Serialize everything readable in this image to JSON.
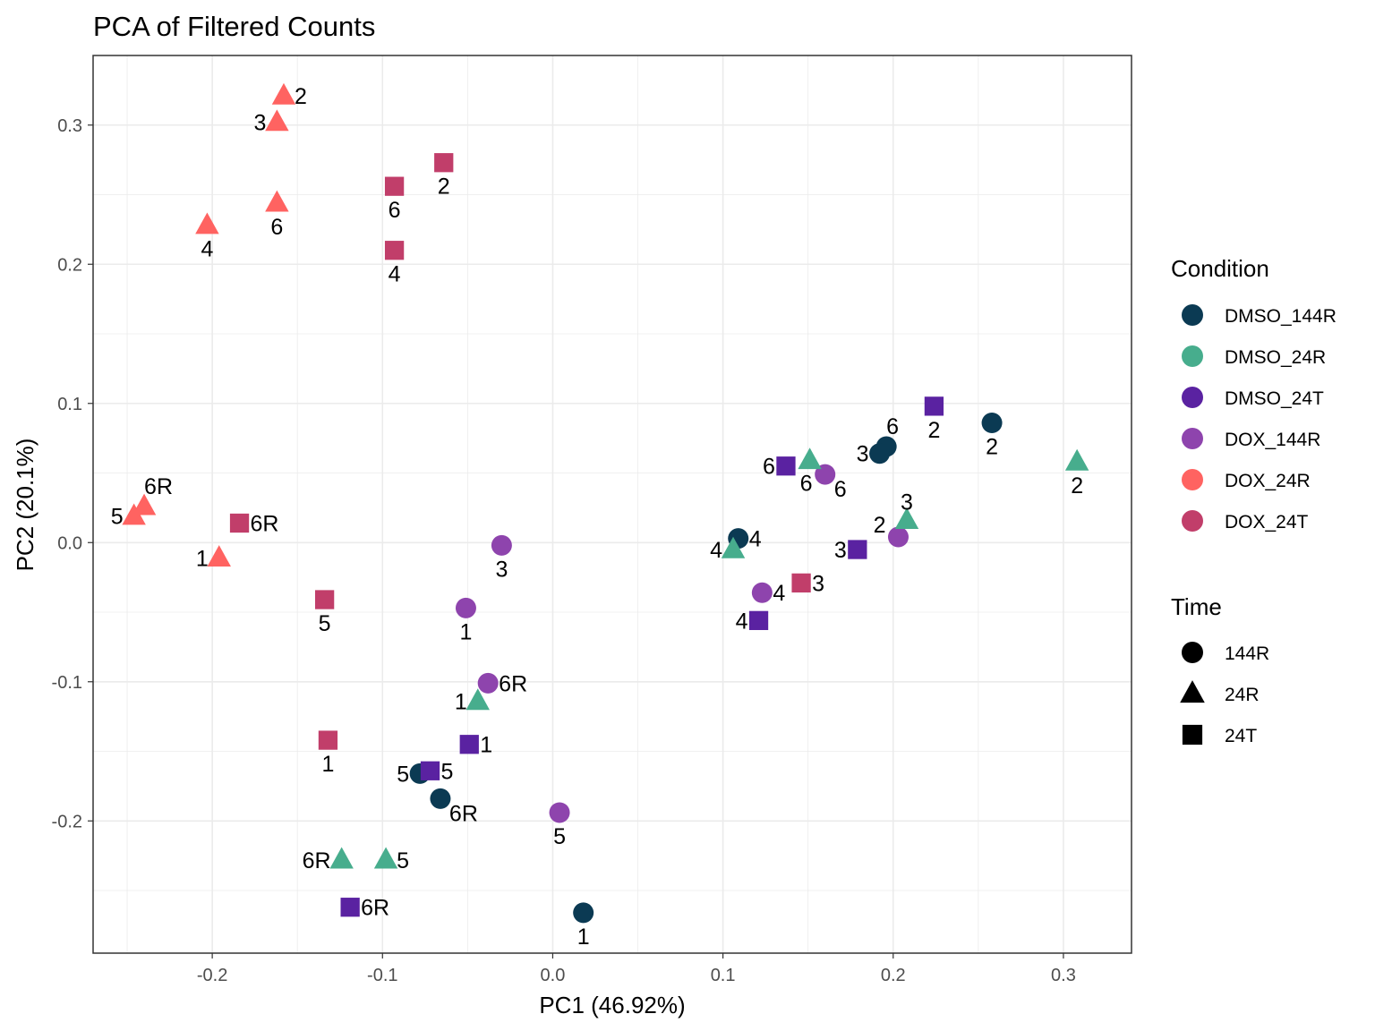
{
  "chart_data": {
    "type": "scatter",
    "title": "PCA of Filtered Counts",
    "xlabel": "PC1 (46.92%)",
    "ylabel": "PC2 (20.1%)",
    "xlim": [
      -0.27,
      0.34
    ],
    "ylim": [
      -0.295,
      0.35
    ],
    "xticks": [
      -0.2,
      -0.1,
      0.0,
      0.1,
      0.2,
      0.3
    ],
    "xtick_labels": [
      "-0.2",
      "-0.1",
      "0.0",
      "0.1",
      "0.2",
      "0.3"
    ],
    "yticks": [
      -0.2,
      -0.1,
      0.0,
      0.1,
      0.2,
      0.3
    ],
    "ytick_labels": [
      "-0.2",
      "-0.1",
      "0.0",
      "0.1",
      "0.2",
      "0.3"
    ],
    "grid": true,
    "legend_position": "right",
    "colors": {
      "DMSO_144R": "#0b3a53",
      "DMSO_24R": "#47ad8d",
      "DMSO_24T": "#5a22a1",
      "DOX_144R": "#8e44ad",
      "DOX_24R": "#ff6361",
      "DOX_24T": "#c13e6a"
    },
    "legend_condition": {
      "title": "Condition",
      "entries": [
        "DMSO_144R",
        "DMSO_24R",
        "DMSO_24T",
        "DOX_144R",
        "DOX_24R",
        "DOX_24T"
      ]
    },
    "legend_time": {
      "title": "Time",
      "entries": [
        {
          "label": "144R",
          "shape": "circle"
        },
        {
          "label": "24R",
          "shape": "triangle"
        },
        {
          "label": "24T",
          "shape": "square"
        }
      ]
    },
    "points": [
      {
        "x": -0.158,
        "y": 0.321,
        "condition": "DOX_24R",
        "time": "24R",
        "label": "2",
        "pos": "right"
      },
      {
        "x": -0.162,
        "y": 0.302,
        "condition": "DOX_24R",
        "time": "24R",
        "label": "3",
        "pos": "left"
      },
      {
        "x": -0.162,
        "y": 0.244,
        "condition": "DOX_24R",
        "time": "24R",
        "label": "6",
        "pos": "below"
      },
      {
        "x": -0.203,
        "y": 0.228,
        "condition": "DOX_24R",
        "time": "24R",
        "label": "4",
        "pos": "below"
      },
      {
        "x": -0.24,
        "y": 0.026,
        "condition": "DOX_24R",
        "time": "24R",
        "label": "6R",
        "pos": "above-right"
      },
      {
        "x": -0.246,
        "y": 0.019,
        "condition": "DOX_24R",
        "time": "24R",
        "label": "5",
        "pos": "left"
      },
      {
        "x": -0.196,
        "y": -0.011,
        "condition": "DOX_24R",
        "time": "24R",
        "label": "1",
        "pos": "left"
      },
      {
        "x": -0.064,
        "y": 0.273,
        "condition": "DOX_24T",
        "time": "24T",
        "label": "2",
        "pos": "below"
      },
      {
        "x": -0.093,
        "y": 0.256,
        "condition": "DOX_24T",
        "time": "24T",
        "label": "6",
        "pos": "below"
      },
      {
        "x": -0.093,
        "y": 0.21,
        "condition": "DOX_24T",
        "time": "24T",
        "label": "4",
        "pos": "below"
      },
      {
        "x": -0.184,
        "y": 0.014,
        "condition": "DOX_24T",
        "time": "24T",
        "label": "6R",
        "pos": "right"
      },
      {
        "x": -0.134,
        "y": -0.041,
        "condition": "DOX_24T",
        "time": "24T",
        "label": "5",
        "pos": "below"
      },
      {
        "x": -0.132,
        "y": -0.142,
        "condition": "DOX_24T",
        "time": "24T",
        "label": "1",
        "pos": "below"
      },
      {
        "x": 0.146,
        "y": -0.029,
        "condition": "DOX_24T",
        "time": "24T",
        "label": "3",
        "pos": "right"
      },
      {
        "x": -0.03,
        "y": -0.002,
        "condition": "DOX_144R",
        "time": "144R",
        "label": "3",
        "pos": "below"
      },
      {
        "x": -0.051,
        "y": -0.047,
        "condition": "DOX_144R",
        "time": "144R",
        "label": "1",
        "pos": "below"
      },
      {
        "x": -0.038,
        "y": -0.101,
        "condition": "DOX_144R",
        "time": "144R",
        "label": "6R",
        "pos": "right"
      },
      {
        "x": 0.004,
        "y": -0.194,
        "condition": "DOX_144R",
        "time": "144R",
        "label": "5",
        "pos": "below"
      },
      {
        "x": 0.16,
        "y": 0.049,
        "condition": "DOX_144R",
        "time": "144R",
        "label": "6",
        "pos": "below-right"
      },
      {
        "x": 0.203,
        "y": 0.004,
        "condition": "DOX_144R",
        "time": "144R",
        "label": "2",
        "pos": "above-left"
      },
      {
        "x": 0.123,
        "y": -0.036,
        "condition": "DOX_144R",
        "time": "144R",
        "label": "4",
        "pos": "right"
      },
      {
        "x": 0.258,
        "y": 0.086,
        "condition": "DMSO_144R",
        "time": "144R",
        "label": "2",
        "pos": "below"
      },
      {
        "x": 0.196,
        "y": 0.069,
        "condition": "DMSO_144R",
        "time": "144R",
        "label": "6",
        "pos": "above-right"
      },
      {
        "x": 0.192,
        "y": 0.064,
        "condition": "DMSO_144R",
        "time": "144R",
        "label": "3",
        "pos": "left"
      },
      {
        "x": 0.109,
        "y": 0.003,
        "condition": "DMSO_144R",
        "time": "144R",
        "label": "4",
        "pos": "right"
      },
      {
        "x": -0.078,
        "y": -0.166,
        "condition": "DMSO_144R",
        "time": "144R",
        "label": "5",
        "pos": "left"
      },
      {
        "x": -0.066,
        "y": -0.184,
        "condition": "DMSO_144R",
        "time": "144R",
        "label": "6R",
        "pos": "below-right"
      },
      {
        "x": 0.018,
        "y": -0.266,
        "condition": "DMSO_144R",
        "time": "144R",
        "label": "1",
        "pos": "below"
      },
      {
        "x": 0.308,
        "y": 0.058,
        "condition": "DMSO_24R",
        "time": "24R",
        "label": "2",
        "pos": "below"
      },
      {
        "x": 0.151,
        "y": 0.059,
        "condition": "DMSO_24R",
        "time": "24R",
        "label": "6",
        "pos": "below-left"
      },
      {
        "x": 0.208,
        "y": 0.016,
        "condition": "DMSO_24R",
        "time": "24R",
        "label": "3",
        "pos": "above"
      },
      {
        "x": 0.106,
        "y": -0.005,
        "condition": "DMSO_24R",
        "time": "24R",
        "label": "4",
        "pos": "left"
      },
      {
        "x": -0.044,
        "y": -0.114,
        "condition": "DMSO_24R",
        "time": "24R",
        "label": "1",
        "pos": "left"
      },
      {
        "x": -0.124,
        "y": -0.228,
        "condition": "DMSO_24R",
        "time": "24R",
        "label": "6R",
        "pos": "left"
      },
      {
        "x": -0.098,
        "y": -0.228,
        "condition": "DMSO_24R",
        "time": "24R",
        "label": "5",
        "pos": "right"
      },
      {
        "x": 0.224,
        "y": 0.098,
        "condition": "DMSO_24T",
        "time": "24T",
        "label": "2",
        "pos": "below"
      },
      {
        "x": 0.137,
        "y": 0.055,
        "condition": "DMSO_24T",
        "time": "24T",
        "label": "6",
        "pos": "left"
      },
      {
        "x": 0.179,
        "y": -0.005,
        "condition": "DMSO_24T",
        "time": "24T",
        "label": "3",
        "pos": "left"
      },
      {
        "x": 0.121,
        "y": -0.056,
        "condition": "DMSO_24T",
        "time": "24T",
        "label": "4",
        "pos": "left"
      },
      {
        "x": -0.049,
        "y": -0.145,
        "condition": "DMSO_24T",
        "time": "24T",
        "label": "1",
        "pos": "right"
      },
      {
        "x": -0.072,
        "y": -0.164,
        "condition": "DMSO_24T",
        "time": "24T",
        "label": "5",
        "pos": "right"
      },
      {
        "x": -0.119,
        "y": -0.262,
        "condition": "DMSO_24T",
        "time": "24T",
        "label": "6R",
        "pos": "right"
      }
    ]
  }
}
